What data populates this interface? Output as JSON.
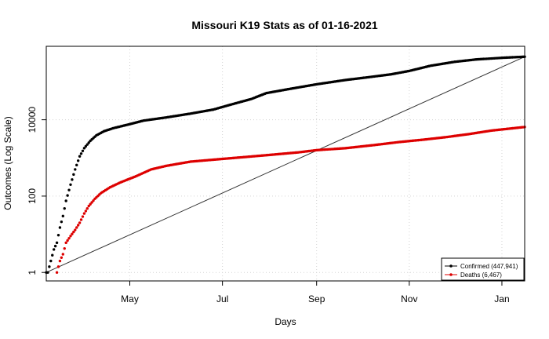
{
  "chart_data": {
    "type": "scatter",
    "title": "Missouri K19 Stats as of 01-16-2021",
    "xlabel": "Days",
    "ylabel": "Outcomes (Log Scale)",
    "x_scale": "date",
    "y_scale": "log10",
    "xlim": [
      "2020-03-07",
      "2021-01-16"
    ],
    "ylim": [
      0.6,
      840000
    ],
    "x_ticks": [
      {
        "date": "2020-05-01",
        "label": "May"
      },
      {
        "date": "2020-07-01",
        "label": "Jul"
      },
      {
        "date": "2020-09-01",
        "label": "Sep"
      },
      {
        "date": "2020-11-01",
        "label": "Nov"
      },
      {
        "date": "2021-01-01",
        "label": "Jan"
      }
    ],
    "y_ticks": [
      {
        "value": 1,
        "label": "1"
      },
      {
        "value": 100,
        "label": "100"
      },
      {
        "value": 10000,
        "label": "10000"
      }
    ],
    "grid": true,
    "legend_position": "bottom-right",
    "series": [
      {
        "name": "Confirmed (447,941)",
        "color": "#000000",
        "points": [
          [
            "2020-03-07",
            1
          ],
          [
            "2020-03-08",
            1
          ],
          [
            "2020-03-10",
            2
          ],
          [
            "2020-03-12",
            4
          ],
          [
            "2020-03-14",
            6
          ],
          [
            "2020-03-16",
            15
          ],
          [
            "2020-03-18",
            30
          ],
          [
            "2020-03-20",
            75
          ],
          [
            "2020-03-23",
            200
          ],
          [
            "2020-03-26",
            500
          ],
          [
            "2020-03-29",
            1100
          ],
          [
            "2020-04-01",
            1800
          ],
          [
            "2020-04-05",
            2800
          ],
          [
            "2020-04-09",
            3900
          ],
          [
            "2020-04-14",
            5000
          ],
          [
            "2020-04-20",
            6000
          ],
          [
            "2020-04-30",
            7500
          ],
          [
            "2020-05-10",
            9500
          ],
          [
            "2020-05-25",
            11500
          ],
          [
            "2020-06-10",
            14500
          ],
          [
            "2020-06-25",
            18500
          ],
          [
            "2020-07-05",
            24000
          ],
          [
            "2020-07-20",
            35000
          ],
          [
            "2020-07-30",
            50000
          ],
          [
            "2020-08-15",
            65000
          ],
          [
            "2020-09-01",
            85000
          ],
          [
            "2020-09-20",
            110000
          ],
          [
            "2020-10-05",
            130000
          ],
          [
            "2020-10-20",
            155000
          ],
          [
            "2020-11-01",
            190000
          ],
          [
            "2020-11-15",
            260000
          ],
          [
            "2020-12-01",
            330000
          ],
          [
            "2020-12-15",
            380000
          ],
          [
            "2021-01-01",
            420000
          ],
          [
            "2021-01-16",
            447941
          ]
        ]
      },
      {
        "name": "Deaths (6,467)",
        "color": "#dd0000",
        "points": [
          [
            "2020-03-14",
            1
          ],
          [
            "2020-03-16",
            2
          ],
          [
            "2020-03-18",
            3
          ],
          [
            "2020-03-20",
            6
          ],
          [
            "2020-03-23",
            9
          ],
          [
            "2020-03-26",
            13
          ],
          [
            "2020-03-29",
            20
          ],
          [
            "2020-04-01",
            35
          ],
          [
            "2020-04-04",
            55
          ],
          [
            "2020-04-08",
            85
          ],
          [
            "2020-04-12",
            120
          ],
          [
            "2020-04-18",
            170
          ],
          [
            "2020-04-25",
            230
          ],
          [
            "2020-05-05",
            330
          ],
          [
            "2020-05-15",
            500
          ],
          [
            "2020-05-25",
            620
          ],
          [
            "2020-06-10",
            800
          ],
          [
            "2020-06-25",
            900
          ],
          [
            "2020-07-15",
            1050
          ],
          [
            "2020-08-01",
            1200
          ],
          [
            "2020-08-20",
            1400
          ],
          [
            "2020-09-01",
            1600
          ],
          [
            "2020-09-20",
            1800
          ],
          [
            "2020-10-10",
            2200
          ],
          [
            "2020-10-25",
            2600
          ],
          [
            "2020-11-10",
            3000
          ],
          [
            "2020-11-25",
            3500
          ],
          [
            "2020-12-10",
            4200
          ],
          [
            "2020-12-25",
            5200
          ],
          [
            "2021-01-16",
            6467
          ]
        ]
      }
    ],
    "reference_line": {
      "color": "#333333",
      "from": [
        "2020-03-07",
        1
      ],
      "to": [
        "2021-01-16",
        447941
      ]
    }
  }
}
